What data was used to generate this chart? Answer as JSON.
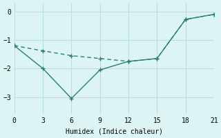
{
  "xlabel": "Humidex (Indice chaleur)",
  "line1_x": [
    0,
    3,
    6,
    9,
    12,
    15,
    18,
    21
  ],
  "line1_y": [
    -1.2,
    -1.38,
    -1.55,
    -1.65,
    -1.75,
    -1.65,
    -0.28,
    -0.1
  ],
  "line2_x": [
    0,
    3,
    6,
    9,
    12,
    15,
    18,
    21
  ],
  "line2_y": [
    -1.2,
    -2.0,
    -3.05,
    -2.05,
    -1.75,
    -1.65,
    -0.28,
    -0.1
  ],
  "line_color": "#2a7a7a",
  "background_color": "#ddf4f4",
  "grid_color": "#b8e0e0",
  "xlim": [
    0,
    21
  ],
  "ylim": [
    -3.6,
    0.3
  ],
  "yticks": [
    0,
    -1,
    -2,
    -3
  ],
  "xticks": [
    0,
    3,
    6,
    9,
    12,
    15,
    18,
    21
  ],
  "marker": "+",
  "markersize": 5,
  "linewidth": 1.0,
  "line1_dash": [
    4,
    3
  ],
  "line2_dash": []
}
